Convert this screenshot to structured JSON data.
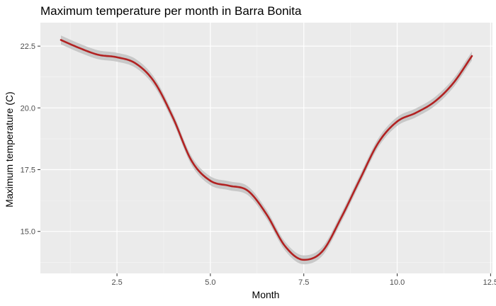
{
  "chart_data": {
    "type": "line",
    "title": "Maximum temperature per month in Barra Bonita",
    "xlabel": "Month",
    "ylabel": "Maximum temperature (C)",
    "xlim": [
      0.45,
      12.55
    ],
    "ylim": [
      13.3,
      23.45
    ],
    "x_ticks": [
      2.5,
      5.0,
      7.5,
      10.0,
      12.5
    ],
    "x_tick_labels": [
      "2.5",
      "5.0",
      "7.5",
      "10.0",
      "12.5"
    ],
    "y_ticks": [
      15.0,
      17.5,
      20.0,
      22.5
    ],
    "y_tick_labels": [
      "15.0",
      "17.5",
      "20.0",
      "22.5"
    ],
    "grid": true,
    "series": [
      {
        "smoothed": true,
        "confidence_band": true,
        "x": [
          1.0,
          1.5,
          2.0,
          2.5,
          3.0,
          3.5,
          4.0,
          4.5,
          5.0,
          5.5,
          6.0,
          6.5,
          7.0,
          7.5,
          8.0,
          8.5,
          9.0,
          9.5,
          10.0,
          10.5,
          11.0,
          11.5,
          12.0
        ],
        "values": [
          22.75,
          22.42,
          22.15,
          22.05,
          21.8,
          21.05,
          19.6,
          17.85,
          17.05,
          16.85,
          16.65,
          15.7,
          14.4,
          13.85,
          14.2,
          15.55,
          17.1,
          18.6,
          19.45,
          19.8,
          20.25,
          21.0,
          22.1
        ],
        "band": 0.18
      }
    ],
    "colors": {
      "line": "#b22222",
      "band": "#c4c4c4",
      "panel": "#ebebeb",
      "grid_major": "#ffffff",
      "grid_minor": "#f5f5f5"
    }
  }
}
